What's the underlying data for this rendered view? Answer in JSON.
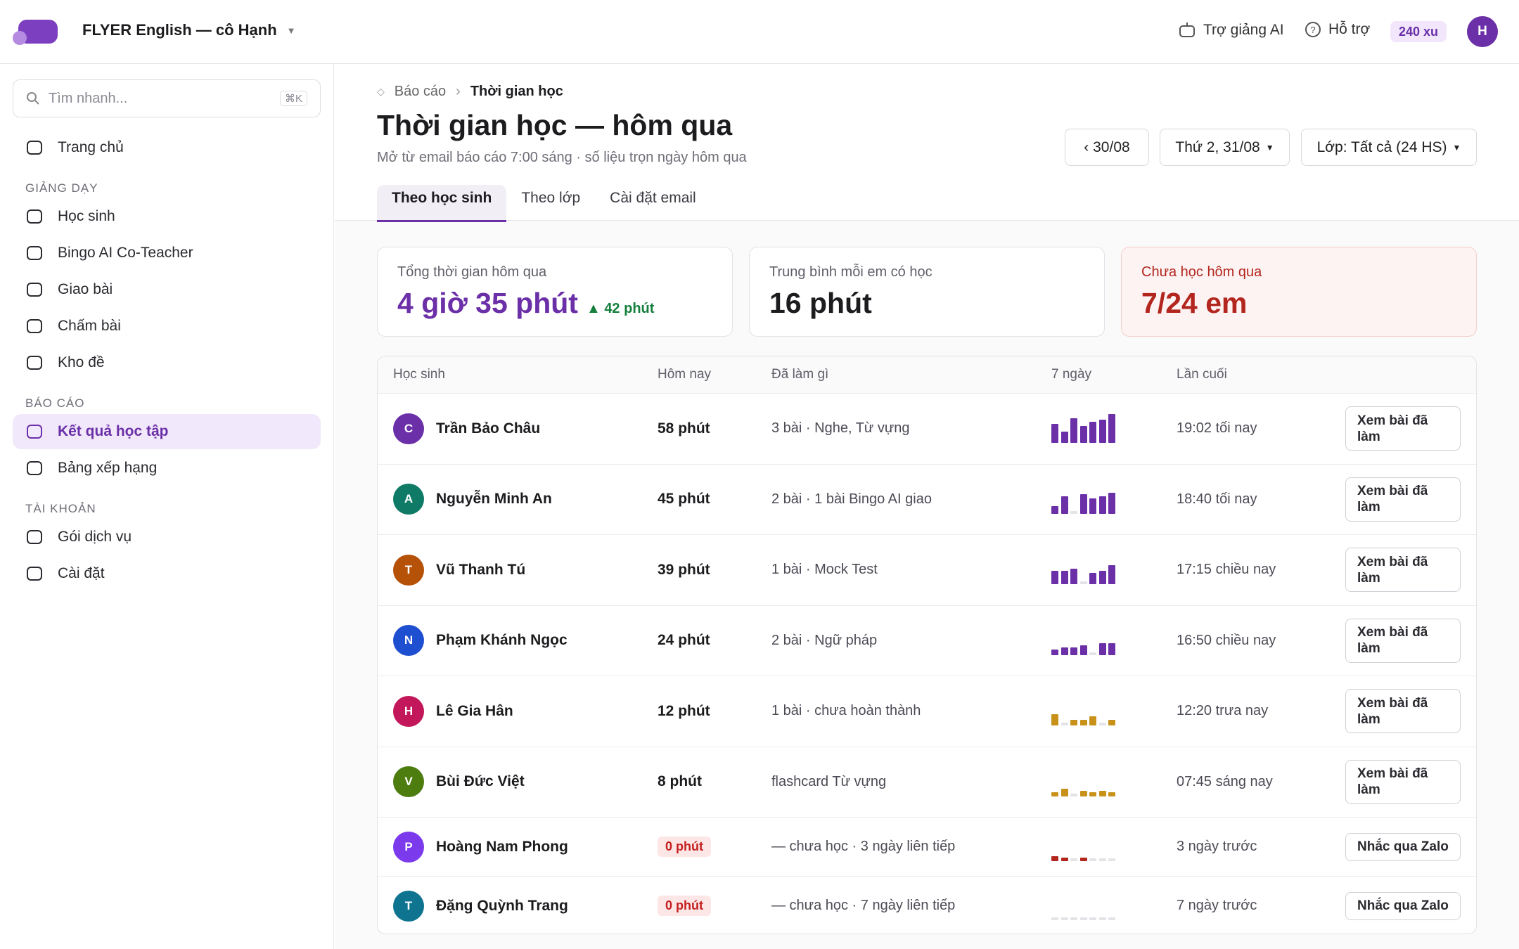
{
  "header": {
    "brand": "FLYER English — cô Hạnh",
    "ai": "Trợ giảng AI",
    "help": "Hỗ trợ",
    "coins": "240 xu",
    "avatar": "H"
  },
  "sidebar": {
    "search": "Tìm nhanh...",
    "shortcut": "⌘K",
    "home": "Trang chủ",
    "groups": [
      {
        "title": "GIẢNG DẠY",
        "items": [
          "Học sinh",
          "Bingo AI Co-Teacher",
          "Giao bài",
          "Chấm bài",
          "Kho đề"
        ]
      },
      {
        "title": "BÁO CÁO",
        "items": [
          "Kết quả học tập",
          "Bảng xếp hạng"
        ]
      },
      {
        "title": "TÀI KHOẢN",
        "items": [
          "Gói dịch vụ",
          "Cài đặt"
        ]
      }
    ],
    "active": "Kết quả học tập"
  },
  "page": {
    "breadcrumb": [
      "Báo cáo",
      "Thời gian học"
    ],
    "title": "Thời gian học — hôm qua",
    "subtitle": "Mở từ email báo cáo 7:00 sáng · số liệu trọn ngày hôm qua",
    "controls": [
      "‹ 30/08",
      "Thứ 2, 31/08",
      "Lớp: Tất cả (24 HS)"
    ],
    "tabs": [
      "Theo học sinh",
      "Theo lớp",
      "Cài đặt email"
    ],
    "stats": [
      {
        "label": "Tổng thời gian hôm qua",
        "value": "4 giờ 35 phút",
        "delta": "42 phút"
      },
      {
        "label": "Trung bình mỗi em có học",
        "value": "16 phút"
      },
      {
        "label": "Chưa học hôm qua",
        "value": "7/24 em"
      }
    ]
  },
  "table": {
    "headers": [
      "Học sinh",
      "Hôm nay",
      "Đã làm gì",
      "7 ngày",
      "Lần cuối"
    ],
    "rows": [
      {
        "initial": "C",
        "avatar_color": "#6b2fa8",
        "name": "Trần Bảo Châu",
        "today": "58 phút",
        "activity": "3 bài · Nghe, Từ vựng",
        "week": [
          20,
          12,
          26,
          18,
          22,
          24,
          30
        ],
        "week_color": "#6b2fa8",
        "last": "19:02 tối nay",
        "action": "Xem bài đã làm"
      },
      {
        "initial": "A",
        "avatar_color": "#0f7a66",
        "name": "Nguyễn Minh An",
        "today": "45 phút",
        "activity": "2 bài · 1 bài Bingo AI giao",
        "week": [
          8,
          18,
          0,
          20,
          16,
          18,
          22
        ],
        "week_color": "#6b2fa8",
        "last": "18:40 tối nay",
        "action": "Xem bài đã làm"
      },
      {
        "initial": "T",
        "avatar_color": "#b65108",
        "name": "Vũ Thanh Tú",
        "today": "39 phút",
        "activity": "1 bài · Mock Test",
        "week": [
          14,
          14,
          16,
          0,
          12,
          14,
          20
        ],
        "week_color": "#6b2fa8",
        "last": "17:15 chiều nay",
        "action": "Xem bài đã làm"
      },
      {
        "initial": "N",
        "avatar_color": "#1f4fd1",
        "name": "Phạm Khánh Ngọc",
        "today": "24 phút",
        "activity": "2 bài · Ngữ pháp",
        "week": [
          6,
          8,
          8,
          10,
          0,
          12,
          12
        ],
        "week_color": "#6b2fa8",
        "last": "16:50 chiều nay",
        "action": "Xem bài đã làm"
      },
      {
        "initial": "H",
        "avatar_color": "#c2185b",
        "name": "Lê Gia Hân",
        "today": "12 phút",
        "activity": "1 bài · chưa hoàn thành",
        "week": [
          12,
          0,
          6,
          6,
          10,
          0,
          6
        ],
        "week_color": "#c8921a",
        "last": "12:20 trưa nay",
        "action": "Xem bài đã làm"
      },
      {
        "initial": "V",
        "avatar_color": "#4d7c0f",
        "name": "Bùi Đức Việt",
        "today": "8 phút",
        "activity": "flashcard Từ vựng",
        "week": [
          4,
          8,
          0,
          6,
          4,
          6,
          4
        ],
        "week_color": "#c8921a",
        "last": "07:45 sáng nay",
        "action": "Xem bài đã làm"
      },
      {
        "initial": "P",
        "avatar_color": "#7c3aed",
        "name": "Hoàng Nam Phong",
        "today": "0 phút",
        "activity": "— chưa học · 3 ngày liên tiếp",
        "week": [
          5,
          4,
          0,
          4,
          0,
          0,
          0
        ],
        "week_color": "#b3261e",
        "last": "3 ngày trước",
        "action": "Nhắc qua Zalo"
      },
      {
        "initial": "T",
        "avatar_color": "#0e7490",
        "name": "Đặng Quỳnh Trang",
        "today": "0 phút",
        "activity": "— chưa học · 7 ngày liên tiếp",
        "week": [
          0,
          0,
          0,
          0,
          0,
          0,
          0
        ],
        "week_color": "#b3261e",
        "last": "7 ngày trước",
        "action": "Nhắc qua Zalo"
      }
    ],
    "week_max": 30
  }
}
